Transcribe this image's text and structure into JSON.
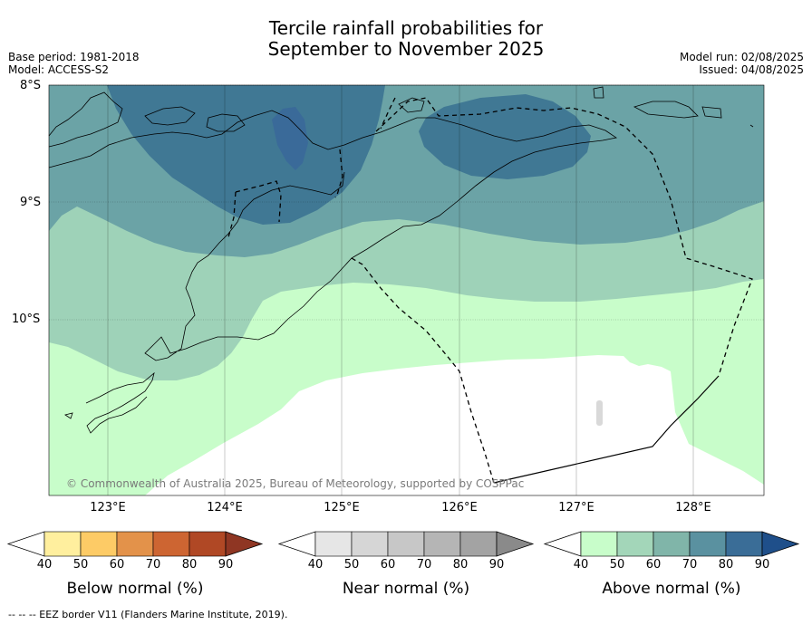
{
  "title_line1": "Tercile rainfall probabilities for",
  "title_line2": "September to November 2025",
  "base_period": "Base period: 1981-2018",
  "model": "Model: ACCESS-S2",
  "model_run": "Model run: 02/08/2025",
  "issued": "Issued: 04/08/2025",
  "latitude_labels": [
    "8°S",
    "9°S",
    "10°S"
  ],
  "longitude_labels": [
    "123°E",
    "124°E",
    "125°E",
    "126°E",
    "127°E",
    "128°E"
  ],
  "extent": {
    "lon_min": 122.5,
    "lon_max": 128.6,
    "lat_min": -11.5,
    "lat_max": -8.0
  },
  "copyright": "© Commonwealth of Australia 2025, Bureau of Meteorology, supported by COSPPac",
  "colorbars": [
    {
      "title": "Below normal (%)",
      "ticks": [
        "40",
        "50",
        "60",
        "70",
        "80",
        "90"
      ],
      "colors": [
        "#ffef9e",
        "#fdcb66",
        "#e3924a",
        "#cd6532",
        "#b04825",
        "#8f3623"
      ]
    },
    {
      "title": "Near normal (%)",
      "ticks": [
        "40",
        "50",
        "60",
        "70",
        "80",
        "90"
      ],
      "colors": [
        "#e6e6e6",
        "#d6d6d6",
        "#c7c7c7",
        "#b5b5b5",
        "#a3a3a3",
        "#8a8a8a"
      ]
    },
    {
      "title": "Above normal (%)",
      "ticks": [
        "40",
        "50",
        "60",
        "70",
        "80",
        "90"
      ],
      "colors": [
        "#c8fdca",
        "#a3d6b9",
        "#80b5a9",
        "#5a91a0",
        "#3a6d97",
        "#1f4f8a"
      ]
    }
  ],
  "footnote": "--  --  -- EEZ border V11 (Flanders Marine Institute, 2019)."
}
